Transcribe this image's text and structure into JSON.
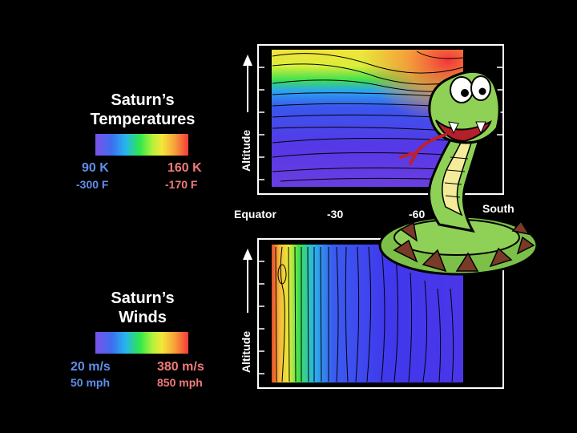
{
  "legends": {
    "temperature": {
      "title_line1": "Saturn’s",
      "title_line2": "Temperatures",
      "min_value": "90 K",
      "min_sub": "-300 F",
      "max_value": "160 K",
      "max_sub": "-170 F"
    },
    "winds": {
      "title_line1": "Saturn’s",
      "title_line2": "Winds",
      "min_value": "20 m/s",
      "min_sub": "50 mph",
      "max_value": "380 m/s",
      "max_sub": "850 mph"
    }
  },
  "axes": {
    "y_label": "Altitude",
    "x_labels": [
      "Equator",
      "-30",
      "-60",
      "South"
    ]
  },
  "colors": {
    "scale_low": "#7a52e8",
    "scale_mid": "#2ee84c",
    "scale_high": "#f33a3a",
    "label_blue": "#5f8fe8",
    "label_red": "#f07a7a"
  },
  "chart_data": [
    {
      "type": "heatmap",
      "title": "Saturn’s Temperatures",
      "xlabel": "",
      "ylabel": "Altitude",
      "x": [
        "Equator",
        "-30",
        "-60",
        "South"
      ],
      "colorbar": {
        "min": "90 K",
        "max": "160 K"
      },
      "grid": false
    },
    {
      "type": "heatmap",
      "title": "Saturn’s Winds",
      "xlabel": "",
      "ylabel": "Altitude",
      "x": [
        "Equator",
        "-30",
        "-60",
        "South"
      ],
      "colorbar": {
        "min": "20 m/s",
        "max": "380 m/s"
      },
      "grid": false
    }
  ]
}
